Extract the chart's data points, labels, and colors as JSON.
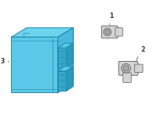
{
  "bg_color": "#ffffff",
  "part_fill": "#5bc8e8",
  "part_fill_top": "#6ed4ee",
  "part_fill_side": "#4ab8de",
  "part_edge": "#2288aa",
  "connector_fill": "#3aaccc",
  "connector_dark": "#2a9abb",
  "label_color": "#333333",
  "label_fontsize": 5.5,
  "line_color": "#444444",
  "sensor_fill": "#d4d4d4",
  "sensor_edge": "#555555",
  "sensor_dark": "#b8b8b8",
  "fig_width": 2.0,
  "fig_height": 1.47,
  "dpi": 100
}
